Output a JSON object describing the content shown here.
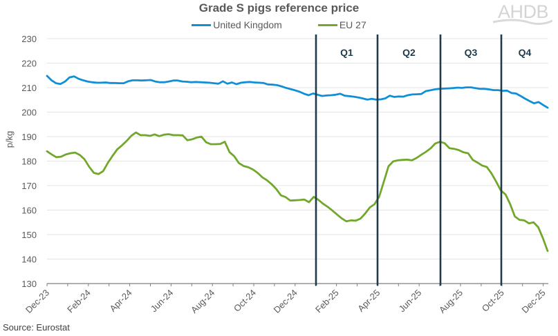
{
  "chart_data": {
    "type": "line",
    "title": "Grade S pigs reference price",
    "xlabel": "",
    "ylabel": "p/kg",
    "ylim": [
      130,
      230
    ],
    "yticks": [
      130,
      140,
      150,
      160,
      170,
      180,
      190,
      200,
      210,
      220,
      230
    ],
    "xtick_labels": [
      "Dec-23",
      "Feb-24",
      "Apr-24",
      "Jun-24",
      "Aug-24",
      "Oct-24",
      "Dec-24",
      "Feb-25",
      "Apr-25",
      "Jun-25",
      "Aug-25",
      "Oct-25",
      "Dec-25"
    ],
    "grid": "horizontal",
    "legend_position": "top",
    "x_range": [
      "Dec-23",
      "Dec-25"
    ],
    "frequency": "weekly",
    "series": [
      {
        "name": "United Kingdom",
        "color": "#0f8fd6",
        "values": [
          214.8,
          213.0,
          211.8,
          211.5,
          212.5,
          214.2,
          214.6,
          213.6,
          213.0,
          212.5,
          212.2,
          212.0,
          212.0,
          212.1,
          211.9,
          211.9,
          211.8,
          211.8,
          212.6,
          213.0,
          213.0,
          212.9,
          213.0,
          213.1,
          212.5,
          212.2,
          212.2,
          212.5,
          212.9,
          212.9,
          212.5,
          212.4,
          212.2,
          212.3,
          212.2,
          212.1,
          212.0,
          211.8,
          211.6,
          212.6,
          211.6,
          212.1,
          211.4,
          212.0,
          212.2,
          212.3,
          212.1,
          212.0,
          211.9,
          211.3,
          211.2,
          211.0,
          210.5,
          209.9,
          209.4,
          208.9,
          208.3,
          207.5,
          206.9,
          207.6,
          207.1,
          206.6,
          206.8,
          206.9,
          207.1,
          207.5,
          206.7,
          206.5,
          206.3,
          206.0,
          205.6,
          205.1,
          205.4,
          205.1,
          205.2,
          205.6,
          206.7,
          206.2,
          206.4,
          206.3,
          206.9,
          207.2,
          207.3,
          207.4,
          208.6,
          208.9,
          209.3,
          209.5,
          209.6,
          209.7,
          209.8,
          210.0,
          209.9,
          210.1,
          210.1,
          209.8,
          209.5,
          209.5,
          209.3,
          209.0,
          209.0,
          208.7,
          208.8,
          207.8,
          207.6,
          206.6,
          205.5,
          204.5,
          203.6,
          204.1,
          202.9,
          201.8
        ]
      },
      {
        "name": "EU 27",
        "color": "#71a82c",
        "values": [
          184.0,
          182.7,
          181.6,
          181.8,
          182.7,
          183.2,
          183.5,
          182.5,
          180.8,
          177.7,
          175.2,
          174.7,
          175.9,
          179.3,
          182.1,
          184.8,
          186.4,
          188.2,
          190.3,
          191.7,
          190.6,
          190.6,
          190.3,
          190.9,
          190.2,
          190.8,
          191.0,
          190.6,
          190.6,
          190.5,
          188.5,
          188.9,
          189.6,
          190.0,
          187.7,
          186.9,
          186.9,
          187.0,
          187.9,
          183.7,
          182.0,
          179.2,
          178.0,
          177.5,
          176.6,
          175.2,
          173.4,
          172.2,
          170.6,
          168.6,
          166.0,
          165.3,
          163.9,
          164.0,
          164.1,
          164.3,
          163.2,
          165.4,
          164.2,
          162.6,
          161.3,
          159.8,
          158.2,
          156.6,
          155.4,
          155.8,
          155.7,
          156.5,
          158.6,
          161.1,
          162.4,
          165.5,
          171.7,
          177.9,
          179.9,
          180.3,
          180.5,
          180.6,
          180.3,
          181.3,
          182.6,
          183.8,
          185.2,
          187.2,
          187.9,
          187.3,
          185.3,
          185.0,
          184.5,
          183.6,
          183.2,
          180.5,
          179.4,
          178.2,
          177.6,
          175.0,
          171.6,
          168.0,
          166.4,
          162.4,
          157.4,
          156.0,
          155.8,
          154.6,
          155.0,
          153.0,
          148.5,
          143.3
        ]
      }
    ],
    "annotations": [
      {
        "label": "Q1",
        "start": "Jan-25"
      },
      {
        "label": "Q2",
        "start": "Apr-25"
      },
      {
        "label": "Q3",
        "start": "Jul-25"
      },
      {
        "label": "Q4",
        "start": "Oct-25"
      }
    ]
  },
  "header": {
    "title": "Grade S pigs reference price",
    "logo": "AHDB"
  },
  "legend": {
    "items": [
      {
        "label": "United Kingdom",
        "color": "#0f8fd6"
      },
      {
        "label": "EU 27",
        "color": "#71a82c"
      }
    ]
  },
  "footer": {
    "source": "Source: Eurostat"
  }
}
